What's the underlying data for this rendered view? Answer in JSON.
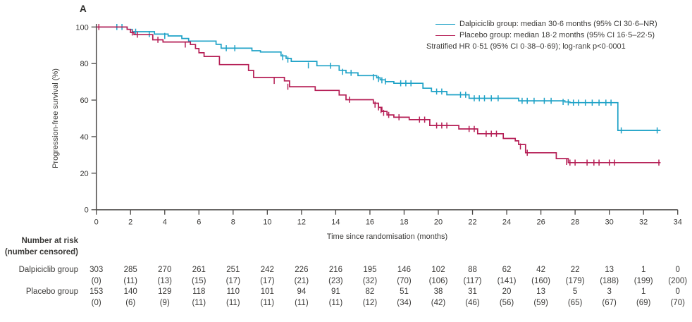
{
  "panel_label": "A",
  "colors": {
    "dalpiciclib": "#1ea2c7",
    "placebo": "#b51e55",
    "axis": "#4a4846",
    "text": "#3b3a38"
  },
  "legend": {
    "line1": "Dalpiciclib group: median 30·6 months (95% CI 30·6–NR)",
    "line2": "Placebo group: median 18·2 months (95% CI 16·5–22·5)",
    "line3": "Stratified HR 0·51 (95% CI 0·38–0·69); log-rank p<0·0001"
  },
  "chart_data": {
    "type": "line",
    "subtype": "kaplan-meier-step",
    "title": "",
    "xlabel": "Time since randomisation (months)",
    "ylabel": "Progression-free survival (%)",
    "xlim": [
      0,
      34
    ],
    "ylim": [
      0,
      100
    ],
    "xticks": [
      0,
      2,
      4,
      6,
      8,
      10,
      12,
      14,
      16,
      18,
      20,
      22,
      24,
      26,
      28,
      30,
      32,
      34
    ],
    "yticks": [
      0,
      20,
      40,
      60,
      80,
      100
    ],
    "grid": false,
    "legend_position": "top-right",
    "series": [
      {
        "name": "Dalpiciclib group",
        "color": "#1ea2c7",
        "median_months": "30·6",
        "ci_95": "30·6–NR",
        "points": [
          [
            0,
            100
          ],
          [
            1.8,
            98.7
          ],
          [
            2.1,
            97.4
          ],
          [
            3.4,
            96.1
          ],
          [
            4.2,
            95.1
          ],
          [
            5.0,
            93.7
          ],
          [
            5.4,
            92.3
          ],
          [
            7.0,
            90.5
          ],
          [
            7.3,
            88.4
          ],
          [
            9.1,
            87.0
          ],
          [
            9.6,
            86.3
          ],
          [
            10.8,
            84.2
          ],
          [
            11.1,
            82.8
          ],
          [
            11.4,
            81.2
          ],
          [
            12.9,
            78.8
          ],
          [
            14.2,
            76.3
          ],
          [
            14.6,
            74.9
          ],
          [
            15.3,
            73.4
          ],
          [
            16.4,
            72.2
          ],
          [
            16.6,
            71.1
          ],
          [
            16.9,
            70.1
          ],
          [
            17.4,
            69.2
          ],
          [
            19.1,
            66.5
          ],
          [
            19.6,
            64.7
          ],
          [
            20.5,
            62.9
          ],
          [
            21.8,
            61.0
          ],
          [
            24.7,
            59.6
          ],
          [
            27.4,
            59.0
          ],
          [
            27.7,
            58.6
          ],
          [
            30.5,
            43.4
          ],
          [
            33.0,
            43.4
          ]
        ],
        "censor_marks": [
          [
            1.2,
            100
          ],
          [
            1.5,
            100
          ],
          [
            2.3,
            97.4
          ],
          [
            3.1,
            96.1
          ],
          [
            4.0,
            95.1
          ],
          [
            7.6,
            88.4
          ],
          [
            8.1,
            88.4
          ],
          [
            10.9,
            83.5
          ],
          [
            11.2,
            82.2
          ],
          [
            12.4,
            79.0
          ],
          [
            13.7,
            78.8
          ],
          [
            14.4,
            75.5
          ],
          [
            14.9,
            74.9
          ],
          [
            16.2,
            72.6
          ],
          [
            16.5,
            71.6
          ],
          [
            16.7,
            70.8
          ],
          [
            16.9,
            70.2
          ],
          [
            17.8,
            69.2
          ],
          [
            18.1,
            69.2
          ],
          [
            18.4,
            69.2
          ],
          [
            19.9,
            64.7
          ],
          [
            20.2,
            64.7
          ],
          [
            21.3,
            62.9
          ],
          [
            21.6,
            62.9
          ],
          [
            22.1,
            61.0
          ],
          [
            22.4,
            61.0
          ],
          [
            22.7,
            61.0
          ],
          [
            23.1,
            61.0
          ],
          [
            23.5,
            61.0
          ],
          [
            24.9,
            59.6
          ],
          [
            25.2,
            59.6
          ],
          [
            25.6,
            59.6
          ],
          [
            26.2,
            59.6
          ],
          [
            26.6,
            59.6
          ],
          [
            27.3,
            59.0
          ],
          [
            27.6,
            58.8
          ],
          [
            27.9,
            58.6
          ],
          [
            28.2,
            58.6
          ],
          [
            28.6,
            58.6
          ],
          [
            29.0,
            58.6
          ],
          [
            29.4,
            58.6
          ],
          [
            29.8,
            58.6
          ],
          [
            30.1,
            58.6
          ],
          [
            30.7,
            43.4
          ],
          [
            32.8,
            43.4
          ]
        ]
      },
      {
        "name": "Placebo group",
        "color": "#b51e55",
        "median_months": "18·2",
        "ci_95": "16·5–22·5",
        "points": [
          [
            0,
            100
          ],
          [
            1.8,
            98.7
          ],
          [
            2.0,
            97.0
          ],
          [
            2.2,
            95.8
          ],
          [
            3.3,
            93.0
          ],
          [
            3.9,
            91.8
          ],
          [
            5.5,
            90.4
          ],
          [
            5.8,
            88.2
          ],
          [
            6.0,
            85.9
          ],
          [
            6.3,
            83.9
          ],
          [
            7.2,
            79.4
          ],
          [
            8.9,
            76.2
          ],
          [
            9.2,
            72.4
          ],
          [
            11.0,
            70.5
          ],
          [
            11.3,
            67.3
          ],
          [
            12.8,
            65.3
          ],
          [
            14.2,
            62.8
          ],
          [
            14.6,
            60.2
          ],
          [
            16.2,
            58.3
          ],
          [
            16.5,
            56.0
          ],
          [
            16.7,
            53.8
          ],
          [
            17.0,
            51.9
          ],
          [
            17.4,
            50.6
          ],
          [
            18.3,
            49.3
          ],
          [
            19.5,
            46.1
          ],
          [
            21.2,
            44.2
          ],
          [
            22.3,
            41.6
          ],
          [
            23.8,
            39.0
          ],
          [
            24.5,
            37.7
          ],
          [
            24.7,
            35.7
          ],
          [
            25.1,
            31.2
          ],
          [
            26.9,
            28.0
          ],
          [
            27.6,
            25.8
          ],
          [
            33.0,
            25.8
          ]
        ],
        "censor_marks": [
          [
            0.15,
            100
          ],
          [
            2.1,
            97.0
          ],
          [
            2.4,
            95.8
          ],
          [
            3.6,
            93.0
          ],
          [
            5.2,
            90.4
          ],
          [
            10.4,
            70.5
          ],
          [
            11.2,
            67.3
          ],
          [
            14.8,
            60.2
          ],
          [
            16.3,
            57.5
          ],
          [
            16.5,
            56.0
          ],
          [
            16.65,
            54.6
          ],
          [
            16.8,
            53.0
          ],
          [
            17.1,
            51.9
          ],
          [
            17.7,
            50.6
          ],
          [
            18.9,
            49.3
          ],
          [
            19.2,
            49.3
          ],
          [
            19.9,
            46.1
          ],
          [
            20.2,
            46.1
          ],
          [
            20.5,
            46.1
          ],
          [
            21.8,
            44.2
          ],
          [
            22.1,
            44.2
          ],
          [
            22.8,
            41.6
          ],
          [
            23.1,
            41.6
          ],
          [
            23.4,
            41.6
          ],
          [
            24.8,
            34.6
          ],
          [
            25.2,
            31.2
          ],
          [
            27.5,
            26.2
          ],
          [
            27.7,
            25.8
          ],
          [
            28.0,
            25.8
          ],
          [
            28.7,
            25.8
          ],
          [
            29.1,
            25.8
          ],
          [
            29.4,
            25.8
          ],
          [
            30.0,
            25.8
          ],
          [
            30.3,
            25.8
          ],
          [
            32.9,
            25.8
          ]
        ]
      }
    ]
  },
  "risk_table": {
    "header_line1": "Number at risk",
    "header_line2": "(number censored)",
    "months": [
      0,
      2,
      4,
      6,
      8,
      10,
      12,
      14,
      16,
      18,
      20,
      22,
      24,
      26,
      28,
      30,
      32,
      34
    ],
    "rows": [
      {
        "label": "Dalpiciclib group",
        "at_risk": [
          303,
          285,
          270,
          261,
          251,
          242,
          226,
          216,
          195,
          146,
          102,
          88,
          62,
          42,
          22,
          13,
          1,
          0
        ],
        "censored": [
          0,
          11,
          13,
          15,
          17,
          17,
          21,
          23,
          32,
          70,
          106,
          117,
          141,
          160,
          179,
          188,
          199,
          200
        ]
      },
      {
        "label": "Placebo group",
        "at_risk": [
          153,
          140,
          129,
          118,
          110,
          101,
          94,
          91,
          82,
          51,
          38,
          31,
          20,
          13,
          5,
          3,
          1,
          0
        ],
        "censored": [
          0,
          6,
          9,
          11,
          11,
          11,
          11,
          11,
          12,
          34,
          42,
          46,
          56,
          59,
          65,
          67,
          69,
          70
        ]
      }
    ]
  }
}
